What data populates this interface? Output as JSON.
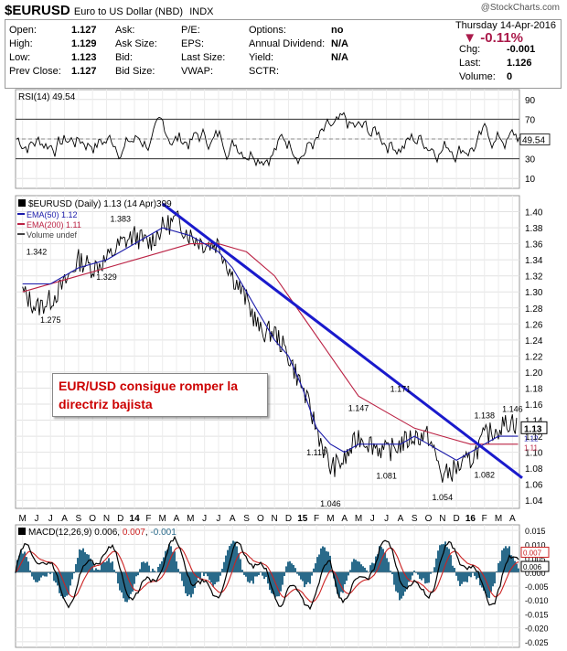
{
  "header": {
    "symbol": "$EURUSD",
    "name": "Euro to US Dollar (NBD)",
    "exchange": "INDX",
    "watermark": "@StockCharts.com",
    "date": "Thursday  14-Apr-2016",
    "pct_change": "▼ -0.11%",
    "stats": [
      {
        "label": "Open:",
        "value": "1.127"
      },
      {
        "label": "High:",
        "value": "1.129"
      },
      {
        "label": "Low:",
        "value": "1.123"
      },
      {
        "label": "Prev Close:",
        "value": "1.127"
      }
    ],
    "stats2": [
      "Ask:",
      "Ask Size:",
      "Bid:",
      "Bid Size:"
    ],
    "stats3": [
      "P/E:",
      "EPS:",
      "Last Size:",
      "VWAP:"
    ],
    "stats4": [
      {
        "label": "Options:",
        "value": "no"
      },
      {
        "label": "Annual Dividend:",
        "value": "N/A"
      },
      {
        "label": "Yield:",
        "value": "N/A"
      },
      {
        "label": "SCTR:",
        "value": ""
      }
    ],
    "right": [
      {
        "label": "Chg:",
        "value": "-0.001"
      },
      {
        "label": "Last:",
        "value": "1.126"
      },
      {
        "label": "Volume:",
        "value": "0"
      }
    ]
  },
  "chart_data": [
    {
      "panel": "rsi",
      "type": "line",
      "title": "RSI(14) 49.54",
      "current": "49.54",
      "yticks": [
        10,
        30,
        50,
        70,
        90
      ],
      "ylim": [
        0,
        100
      ],
      "reference_lines": [
        30,
        50,
        70
      ],
      "note": "oscillates mostly between 30 and 70 throughout"
    },
    {
      "panel": "price",
      "type": "line",
      "title": "$EURUSD (Daily) 1.13 (14 Apr)",
      "title_suffix": "399",
      "legend": [
        "EMA(50) 1.12",
        "EMA(200) 1.11",
        "Volume undef"
      ],
      "ylim": [
        1.03,
        1.42
      ],
      "yticks": [
        "1.04",
        "1.06",
        "1.08",
        "1.10",
        "1.12",
        "1.14",
        "1.16",
        "1.18",
        "1.20",
        "1.22",
        "1.24",
        "1.26",
        "1.28",
        "1.30",
        "1.32",
        "1.34",
        "1.36",
        "1.38",
        "1.40"
      ],
      "last_value_label": "1.13",
      "ema_value_labels": [
        "1.12",
        "1.11"
      ],
      "xlabels": [
        "M",
        "J",
        "J",
        "A",
        "S",
        "O",
        "N",
        "D",
        "14",
        "F",
        "M",
        "A",
        "M",
        "J",
        "J",
        "A",
        "S",
        "O",
        "N",
        "D",
        "15",
        "F",
        "M",
        "A",
        "M",
        "J",
        "J",
        "A",
        "S",
        "O",
        "N",
        "D",
        "16",
        "F",
        "M",
        "A"
      ],
      "series": [
        {
          "name": "$EURUSD",
          "color": "#000000",
          "x": [
            0,
            1,
            2,
            3,
            4,
            5,
            6,
            7,
            8,
            9,
            10,
            11,
            12,
            13,
            14,
            15,
            16,
            17,
            18,
            19,
            20,
            21,
            22,
            23,
            24,
            25,
            26,
            27,
            28,
            29,
            30,
            31,
            32,
            33,
            34,
            35,
            35.4
          ],
          "values": [
            1.3,
            1.28,
            1.29,
            1.31,
            1.34,
            1.33,
            1.34,
            1.36,
            1.37,
            1.36,
            1.38,
            1.39,
            1.37,
            1.36,
            1.36,
            1.32,
            1.29,
            1.25,
            1.25,
            1.22,
            1.18,
            1.13,
            1.08,
            1.09,
            1.12,
            1.11,
            1.1,
            1.11,
            1.12,
            1.12,
            1.07,
            1.08,
            1.09,
            1.12,
            1.13,
            1.14,
            1.13
          ]
        },
        {
          "name": "EMA(50)",
          "color": "#1a1aaa",
          "x": [
            0,
            2,
            4,
            6,
            8,
            10,
            12,
            13,
            14,
            15,
            16,
            17,
            18,
            19,
            20,
            21,
            22,
            23,
            24,
            25,
            26,
            27,
            28,
            29,
            30,
            31,
            32,
            33,
            34,
            35.4
          ],
          "values": [
            1.31,
            1.31,
            1.33,
            1.34,
            1.36,
            1.38,
            1.37,
            1.36,
            1.35,
            1.33,
            1.3,
            1.27,
            1.24,
            1.22,
            1.18,
            1.13,
            1.11,
            1.1,
            1.11,
            1.11,
            1.11,
            1.11,
            1.12,
            1.11,
            1.1,
            1.09,
            1.1,
            1.11,
            1.12,
            1.12
          ]
        },
        {
          "name": "EMA(200)",
          "color": "#bb2244",
          "x": [
            0,
            4,
            8,
            12,
            14,
            16,
            18,
            20,
            22,
            24,
            26,
            28,
            30,
            32,
            35.4
          ],
          "values": [
            1.3,
            1.32,
            1.34,
            1.36,
            1.36,
            1.35,
            1.32,
            1.27,
            1.22,
            1.17,
            1.15,
            1.13,
            1.12,
            1.11,
            1.11
          ]
        }
      ],
      "annotations": [
        {
          "text": "1.383",
          "x": 7,
          "y": 1.383
        },
        {
          "text": "1.342",
          "x": 1,
          "y": 1.342
        },
        {
          "text": "1.329",
          "x": 6,
          "y": 1.329
        },
        {
          "text": "1.275",
          "x": 2,
          "y": 1.275
        },
        {
          "text": "1.171",
          "x": 27,
          "y": 1.171
        },
        {
          "text": "1.147",
          "x": 24,
          "y": 1.147
        },
        {
          "text": "1.138",
          "x": 33,
          "y": 1.138
        },
        {
          "text": "1.146",
          "x": 35,
          "y": 1.146
        },
        {
          "text": "1.110",
          "x": 21,
          "y": 1.11
        },
        {
          "text": "1.081",
          "x": 26,
          "y": 1.081
        },
        {
          "text": "1.082",
          "x": 33,
          "y": 1.082
        },
        {
          "text": "1.054",
          "x": 30,
          "y": 1.054
        },
        {
          "text": "1.046",
          "x": 22,
          "y": 1.046
        }
      ],
      "trendline": {
        "from": {
          "x": 10,
          "y": 1.41
        },
        "to": {
          "x": 36,
          "y": 1.068
        },
        "color": "#1a1acc"
      },
      "callout": {
        "lines": [
          "EUR/USD consigue romper la",
          "directriz bajista"
        ],
        "color": "#cc0000"
      }
    },
    {
      "panel": "macd",
      "type": "line",
      "title": "MACD(12,26,9) 0.006, 0.007, -0.001",
      "title_parts": [
        "MACD(12,26,9) 0.006, ",
        "0.007",
        ", ",
        "-0.001"
      ],
      "ylim": [
        -0.027,
        0.017
      ],
      "yticks": [
        "0.015",
        "0.010",
        "0.005",
        "0.000",
        "-0.005",
        "-0.010",
        "-0.015",
        "-0.020",
        "-0.025"
      ],
      "value_labels": [
        "0.007",
        "0.006"
      ],
      "series": [
        {
          "name": "MACD",
          "color": "#000000"
        },
        {
          "name": "Signal",
          "color": "#cc2222"
        },
        {
          "name": "Histogram",
          "color": "#2a6a8a"
        }
      ],
      "note": "oscillates around zero; deep trough near early 2015 around -0.025"
    }
  ]
}
